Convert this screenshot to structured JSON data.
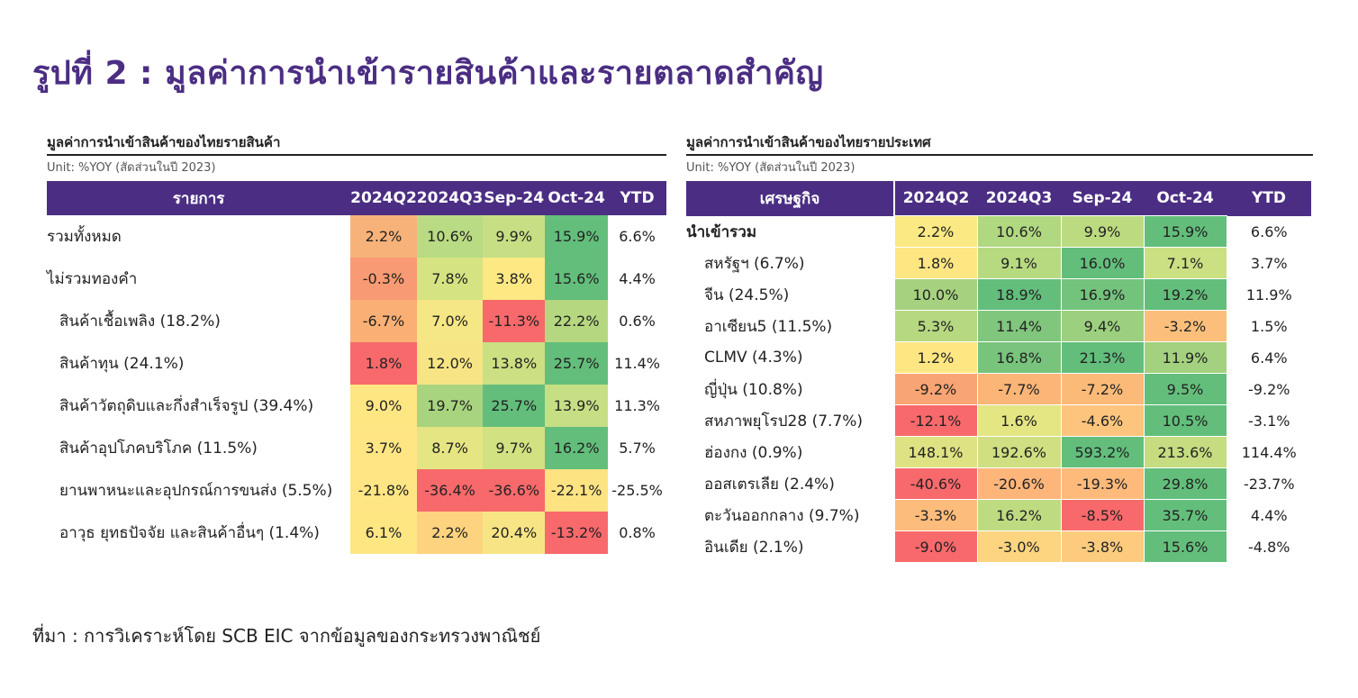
{
  "title": "รูปที่ 2 : มูลค่าการนำเข้ารายสินค้าและรายตลาดสำคัญ",
  "source": "ที่มา : การวิเคราะห์โดย SCB EIC จากข้อมูลของกระทรวงพาณิชย์",
  "chart_data": [
    {
      "type": "table",
      "title": "มูลค่าการนำเข้าสินค้าของไทยรายสินค้า",
      "unit": "Unit: %YOY (สัดส่วนในปี 2023)",
      "columns": [
        "รายการ",
        "2024Q2",
        "2024Q3",
        "Sep-24",
        "Oct-24",
        "YTD"
      ],
      "rows": [
        {
          "label": "รวมทั้งหมด",
          "indent": false,
          "values": [
            "2.2%",
            "10.6%",
            "9.9%",
            "15.9%"
          ],
          "heat": [
            "#f7b27a",
            "#b9db83",
            "#c6df84",
            "#63be7b"
          ],
          "ytd": "6.6%"
        },
        {
          "label": "ไม่รวมทองคำ",
          "indent": false,
          "values": [
            "-0.3%",
            "7.8%",
            "3.8%",
            "15.6%"
          ],
          "heat": [
            "#f89a73",
            "#d6e382",
            "#fde883",
            "#63be7b"
          ],
          "ytd": "4.4%"
        },
        {
          "label": "สินค้าเชื้อเพลิง (18.2%)",
          "indent": true,
          "values": [
            "-6.7%",
            "7.0%",
            "-11.3%",
            "22.2%"
          ],
          "heat": [
            "#fab074",
            "#f5e785",
            "#f8696b",
            "#b5d780"
          ],
          "ytd": "0.6%"
        },
        {
          "label": "สินค้าทุน (24.1%)",
          "indent": true,
          "values": [
            "1.8%",
            "12.0%",
            "13.8%",
            "25.7%"
          ],
          "heat": [
            "#f8696b",
            "#f7e585",
            "#ccdf82",
            "#63be7b"
          ],
          "ytd": "11.4%"
        },
        {
          "label": "สินค้าวัตถุดิบและกึ่งสำเร็จรูป (39.4%)",
          "indent": true,
          "values": [
            "9.0%",
            "19.7%",
            "25.7%",
            "13.9%"
          ],
          "heat": [
            "#fee683",
            "#a8d480",
            "#63be7b",
            "#c6df84"
          ],
          "ytd": "11.3%"
        },
        {
          "label": "สินค้าอุปโภคบริโภค (11.5%)",
          "indent": true,
          "values": [
            "3.7%",
            "8.7%",
            "9.7%",
            "16.2%"
          ],
          "heat": [
            "#ffe584",
            "#e5e583",
            "#d2e182",
            "#63be7b"
          ],
          "ytd": "5.7%"
        },
        {
          "label": "ยานพาหนะและอุปกรณ์การขนส่ง (5.5%)",
          "indent": true,
          "values": [
            "-21.8%",
            "-36.4%",
            "-36.6%",
            "-22.1%"
          ],
          "heat": [
            "#ffe584",
            "#f8696b",
            "#f8696b",
            "#fee383"
          ],
          "ytd": "-25.5%"
        },
        {
          "label": "อาวุธ ยุทธปัจจัย และสินค้าอื่นๆ (1.4%)",
          "indent": true,
          "values": [
            "6.1%",
            "2.2%",
            "20.4%",
            "-13.2%"
          ],
          "heat": [
            "#fee683",
            "#fdd37f",
            "#f7e585",
            "#f8696b"
          ],
          "ytd": "0.8%"
        }
      ]
    },
    {
      "type": "table",
      "title": "มูลค่าการนำเข้าสินค้าของไทยรายประเทศ",
      "unit": "Unit: %YOY (สัดส่วนในปี 2023)",
      "columns": [
        "เศรษฐกิจ",
        "2024Q2",
        "2024Q3",
        "Sep-24",
        "Oct-24",
        "YTD"
      ],
      "rows": [
        {
          "label": "นำเข้ารวม",
          "indent": false,
          "bold": true,
          "values": [
            "2.2%",
            "10.6%",
            "9.9%",
            "15.9%"
          ],
          "heat": [
            "#fbe983",
            "#b0d880",
            "#bcdb81",
            "#63be7b"
          ],
          "ytd": "6.6%"
        },
        {
          "label": "สหรัฐฯ (6.7%)",
          "indent": true,
          "bold": false,
          "values": [
            "1.8%",
            "9.1%",
            "16.0%",
            "7.1%"
          ],
          "heat": [
            "#fee683",
            "#b7da81",
            "#63be7b",
            "#cbe082"
          ],
          "ytd": "3.7%"
        },
        {
          "label": "จีน (24.5%)",
          "indent": true,
          "bold": false,
          "values": [
            "10.0%",
            "18.9%",
            "16.9%",
            "19.2%"
          ],
          "heat": [
            "#a6d27f",
            "#63be7b",
            "#74c37c",
            "#63be7b"
          ],
          "ytd": "11.9%"
        },
        {
          "label": "อาเซียน5 (11.5%)",
          "indent": true,
          "bold": false,
          "values": [
            "5.3%",
            "11.4%",
            "9.4%",
            "-3.2%"
          ],
          "heat": [
            "#b5d880",
            "#80c67c",
            "#9ccf7e",
            "#fcbf7b"
          ],
          "ytd": "1.5%"
        },
        {
          "label": "CLMV (4.3%)",
          "indent": true,
          "bold": false,
          "values": [
            "1.2%",
            "16.8%",
            "21.3%",
            "11.9%"
          ],
          "heat": [
            "#fee683",
            "#78c47c",
            "#63be7b",
            "#a4d17f"
          ],
          "ytd": "6.4%"
        },
        {
          "label": "ญี่ปุ่น (10.8%)",
          "indent": true,
          "bold": false,
          "values": [
            "-9.2%",
            "-7.7%",
            "-7.2%",
            "9.5%"
          ],
          "heat": [
            "#f9a474",
            "#fab577",
            "#fbba78",
            "#63be7b"
          ],
          "ytd": "-9.2%"
        },
        {
          "label": "สหภาพยุโรป28 (7.7%)",
          "indent": true,
          "bold": false,
          "values": [
            "-12.1%",
            "1.6%",
            "-4.6%",
            "10.5%"
          ],
          "heat": [
            "#f8696b",
            "#e4e583",
            "#fdc47d",
            "#63be7b"
          ],
          "ytd": "-3.1%"
        },
        {
          "label": "ฮ่องกง (0.9%)",
          "indent": true,
          "bold": false,
          "values": [
            "148.1%",
            "192.6%",
            "593.2%",
            "213.6%"
          ],
          "heat": [
            "#dfe283",
            "#cfdf82",
            "#63be7b",
            "#c6dc81"
          ],
          "ytd": "114.4%"
        },
        {
          "label": "ออสเตรเลีย (2.4%)",
          "indent": true,
          "bold": false,
          "values": [
            "-40.6%",
            "-20.6%",
            "-19.3%",
            "29.8%"
          ],
          "heat": [
            "#f8696b",
            "#fdb57a",
            "#fdba7b",
            "#63be7b"
          ],
          "ytd": "-23.7%"
        },
        {
          "label": "ตะวันออกกลาง (9.7%)",
          "indent": true,
          "bold": false,
          "values": [
            "-3.3%",
            "16.2%",
            "-8.5%",
            "35.7%"
          ],
          "heat": [
            "#fcbc7b",
            "#bfdb81",
            "#f8696b",
            "#63be7b"
          ],
          "ytd": "4.4%"
        },
        {
          "label": "อินเดีย (2.1%)",
          "indent": true,
          "bold": false,
          "values": [
            "-9.0%",
            "-3.0%",
            "-3.8%",
            "15.6%"
          ],
          "heat": [
            "#f8696b",
            "#fdd47f",
            "#fccb7e",
            "#63be7b"
          ],
          "ytd": "-4.8%"
        }
      ]
    }
  ]
}
